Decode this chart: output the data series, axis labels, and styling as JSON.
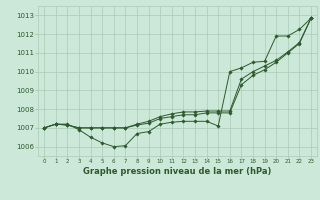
{
  "title": "Graphe pression niveau de la mer (hPa)",
  "bg_color": "#cce8d8",
  "grid_color": "#aaccb8",
  "line_color": "#2d5a2d",
  "x_min": 0,
  "x_max": 23,
  "y_min": 1005.5,
  "y_max": 1013.5,
  "y_ticks": [
    1006,
    1007,
    1008,
    1009,
    1010,
    1011,
    1012,
    1013
  ],
  "series1": [
    1007.0,
    1007.2,
    1007.2,
    1006.9,
    1006.5,
    1006.2,
    1006.0,
    1006.05,
    1006.7,
    1006.8,
    1007.2,
    1007.3,
    1007.35,
    1007.35,
    1007.35,
    1007.1,
    1010.0,
    1010.2,
    1010.5,
    1010.55,
    1011.9,
    1011.9,
    1012.25,
    1012.85
  ],
  "series2": [
    1007.0,
    1007.2,
    1007.15,
    1007.0,
    1007.0,
    1007.0,
    1007.0,
    1007.0,
    1007.15,
    1007.25,
    1007.5,
    1007.6,
    1007.7,
    1007.7,
    1007.8,
    1007.8,
    1007.8,
    1009.3,
    1009.8,
    1010.1,
    1010.5,
    1011.0,
    1011.5,
    1012.85
  ],
  "series3": [
    1007.0,
    1007.2,
    1007.15,
    1007.0,
    1007.0,
    1007.0,
    1007.0,
    1007.0,
    1007.2,
    1007.35,
    1007.6,
    1007.75,
    1007.85,
    1007.85,
    1007.9,
    1007.9,
    1007.9,
    1009.6,
    1010.0,
    1010.3,
    1010.6,
    1011.05,
    1011.55,
    1012.85
  ]
}
